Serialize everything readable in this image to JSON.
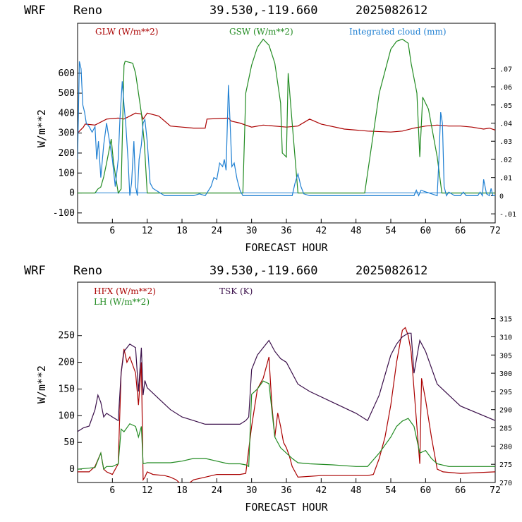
{
  "charts": [
    {
      "header": {
        "model": "WRF",
        "site": "Reno",
        "coords": "39.530,-119.660",
        "date": "2025082612"
      },
      "ylabel": "W/m**2",
      "xlabel": "FORECAST HOUR",
      "legend": {
        "s0": "GLW (W/m**2)",
        "s1": "GSW (W/m**2)",
        "s2": "Integrated cloud (mm)"
      }
    },
    {
      "header": {
        "model": "WRF",
        "site": "Reno",
        "coords": "39.530,-119.660",
        "date": "2025082612"
      },
      "ylabel": "W/m**2",
      "xlabel": "FORECAST HOUR",
      "legend": {
        "s0": "HFX (W/m**2)",
        "s1": "LH (W/m**2)",
        "s2": "TSK (K)"
      }
    }
  ],
  "chart_data": [
    {
      "type": "line",
      "title": "",
      "xlabel": "FORECAST HOUR",
      "ylabel": "W/m**2",
      "xlim": [
        0,
        72
      ],
      "ylim": [
        -150,
        850
      ],
      "x_ticks": [
        6,
        12,
        18,
        24,
        30,
        36,
        42,
        48,
        54,
        60,
        66,
        72
      ],
      "y_ticks": [
        -100,
        0,
        100,
        200,
        300,
        400,
        500,
        600
      ],
      "y2lim": [
        -0.015,
        0.095
      ],
      "y2_ticks": [
        -0.01,
        0,
        0.01,
        0.02,
        0.03,
        0.04,
        0.05,
        0.06,
        0.07
      ],
      "y2_tick_labels": [
        "-.01",
        "0",
        ".01",
        ".02",
        ".03",
        ".04",
        ".05",
        ".06",
        ".07"
      ],
      "grid": false,
      "legend_position": "top",
      "colors": [
        "#aa0000",
        "#228b22",
        "#1e7fd2"
      ],
      "series": [
        {
          "name": "GLW (W/m**2)",
          "axis": "left",
          "x": [
            0,
            1,
            1.3,
            3,
            5,
            7,
            8,
            10,
            11,
            11.3,
            12,
            14,
            16,
            18,
            20,
            22,
            22.3,
            26,
            26.5,
            28,
            30,
            32,
            36,
            38,
            40,
            42,
            46,
            50,
            54,
            56,
            58,
            60,
            62,
            64,
            66,
            68,
            70,
            71,
            72
          ],
          "y": [
            300,
            330,
            345,
            340,
            370,
            375,
            370,
            400,
            395,
            370,
            400,
            385,
            335,
            330,
            325,
            325,
            370,
            375,
            360,
            350,
            330,
            340,
            330,
            335,
            370,
            345,
            320,
            310,
            305,
            310,
            325,
            335,
            340,
            335,
            335,
            330,
            320,
            325,
            315
          ]
        },
        {
          "name": "GSW (W/m**2)",
          "axis": "left",
          "x": [
            0,
            3,
            3.5,
            4,
            4.5,
            5,
            5.8,
            6.2,
            7,
            7.5,
            8,
            8.2,
            9.5,
            10,
            10.5,
            11,
            11.5,
            12,
            28.5,
            29,
            30,
            31,
            32,
            33,
            34,
            35,
            35.3,
            36,
            36.3,
            37,
            38,
            49.5,
            52,
            54,
            55,
            56,
            57,
            57.5,
            58.5,
            59,
            59.5,
            60.5,
            62,
            62.8,
            72
          ],
          "y": [
            0,
            0,
            20,
            30,
            80,
            150,
            270,
            150,
            0,
            20,
            640,
            660,
            650,
            600,
            500,
            400,
            250,
            0,
            0,
            500,
            640,
            730,
            770,
            740,
            650,
            450,
            200,
            180,
            600,
            350,
            0,
            0,
            500,
            720,
            760,
            770,
            750,
            650,
            500,
            180,
            480,
            420,
            180,
            0,
            0
          ]
        },
        {
          "name": "Integrated cloud (mm)",
          "axis": "right",
          "x": [
            0,
            0.3,
            0.6,
            0.9,
            1.2,
            1.5,
            2,
            2.5,
            3,
            3.3,
            3.6,
            4,
            4.5,
            5,
            5.5,
            6,
            6.5,
            7,
            7.3,
            7.7,
            8,
            8.3,
            8.7,
            9,
            9.3,
            9.7,
            10,
            10.3,
            10.6,
            11,
            11.3,
            11.6,
            12,
            12.5,
            13,
            13.5,
            14,
            15,
            20,
            21,
            22,
            23,
            23.5,
            24,
            24.5,
            25,
            25.3,
            25.6,
            26,
            26.3,
            26.6,
            27,
            27.5,
            28,
            28.5,
            29,
            33,
            37,
            37.5,
            38,
            38.5,
            39,
            40,
            58,
            58.4,
            58.8,
            59.2,
            62,
            62.3,
            62.6,
            62.9,
            63.2,
            63.6,
            64,
            65,
            66,
            66.5,
            67,
            69,
            69.4,
            69.8,
            70,
            70.5,
            71,
            71.3,
            71.6,
            72
          ],
          "y": [
            0.02,
            0.074,
            0.07,
            0.05,
            0.046,
            0.04,
            0.038,
            0.035,
            0.038,
            0.02,
            0.03,
            0.01,
            0.028,
            0.04,
            0.03,
            0.02,
            0.005,
            0.02,
            0.042,
            0.063,
            0.05,
            0.04,
            0.02,
            0.0,
            0.007,
            0.03,
            0.005,
            0.0,
            0.02,
            0.028,
            0.04,
            0.042,
            0.03,
            0.007,
            0.004,
            0.003,
            0.002,
            0.0,
            0.0,
            0.001,
            0.0,
            0.005,
            0.01,
            0.009,
            0.018,
            0.016,
            0.02,
            0.014,
            0.061,
            0.04,
            0.016,
            0.018,
            0.009,
            0.003,
            0.0,
            0.0,
            0.0,
            0.0,
            0.007,
            0.012,
            0.005,
            0.001,
            0.0,
            0.0,
            0.003,
            0.0,
            0.003,
            0.0,
            0.02,
            0.046,
            0.04,
            0.005,
            0.0,
            0.002,
            0.0,
            0.0,
            0.002,
            0.0,
            0.0,
            0.002,
            0.0,
            0.009,
            0.001,
            0.0,
            0.004,
            0.0,
            0.0
          ]
        }
      ]
    },
    {
      "type": "line",
      "title": "",
      "xlabel": "FORECAST HOUR",
      "ylabel": "W/m**2",
      "xlim": [
        0,
        72
      ],
      "ylim": [
        -25,
        350
      ],
      "x_ticks": [
        6,
        12,
        18,
        24,
        30,
        36,
        42,
        48,
        54,
        60,
        66,
        72
      ],
      "y_ticks": [
        0,
        50,
        100,
        150,
        200,
        250
      ],
      "y2lim": [
        270,
        325
      ],
      "y2_ticks": [
        270,
        275,
        280,
        285,
        290,
        295,
        300,
        305,
        310,
        315
      ],
      "y2_tick_labels": [
        "270",
        "275",
        "280",
        "285",
        "290",
        "295",
        "300",
        "305",
        "310",
        "315"
      ],
      "grid": false,
      "legend_position": "top-left",
      "colors": [
        "#aa0000",
        "#228b22",
        "#3a0f4a"
      ],
      "series": [
        {
          "name": "HFX (W/m**2)",
          "axis": "left",
          "x": [
            0,
            2,
            3,
            4,
            4.5,
            5,
            6,
            7,
            7.5,
            8,
            8.5,
            9,
            10,
            10.5,
            11,
            11.3,
            11.6,
            12,
            13,
            15,
            16,
            17,
            18,
            19,
            20,
            22,
            24,
            26,
            28,
            29,
            30,
            31,
            32,
            32.5,
            33,
            33.5,
            34,
            34.5,
            35,
            35.5,
            36,
            36.5,
            37,
            38,
            42,
            48,
            50,
            51,
            52,
            53,
            54,
            55,
            56,
            56.5,
            57,
            57.5,
            58,
            58.5,
            59,
            59.3,
            60,
            61,
            62,
            63,
            66,
            72
          ],
          "y": [
            -5,
            -5,
            5,
            30,
            0,
            -5,
            -10,
            10,
            180,
            225,
            200,
            210,
            180,
            120,
            200,
            -20,
            -15,
            -5,
            -10,
            -12,
            -15,
            -20,
            -30,
            -28,
            -20,
            -15,
            -10,
            -10,
            -10,
            -8,
            80,
            150,
            170,
            190,
            210,
            120,
            60,
            105,
            80,
            50,
            40,
            25,
            5,
            -15,
            -12,
            -12,
            -12,
            -10,
            20,
            60,
            120,
            200,
            260,
            265,
            250,
            220,
            150,
            80,
            10,
            170,
            130,
            60,
            0,
            -5,
            -8,
            -5
          ]
        },
        {
          "name": "LH (W/m**2)",
          "axis": "left",
          "x": [
            0,
            3,
            4,
            4.5,
            5,
            6,
            7,
            7.5,
            8,
            9,
            10,
            10.5,
            11,
            11.3,
            12,
            14,
            16,
            18,
            20,
            22,
            24,
            26,
            28,
            29,
            29.5,
            30,
            31,
            32,
            33,
            34,
            35,
            36,
            37,
            38,
            40,
            44,
            48,
            50,
            52,
            54,
            55,
            56,
            57,
            58,
            59,
            60,
            61,
            62,
            64,
            72
          ],
          "y": [
            0,
            3,
            30,
            0,
            5,
            5,
            10,
            75,
            70,
            85,
            80,
            60,
            80,
            10,
            12,
            12,
            12,
            15,
            20,
            20,
            15,
            10,
            10,
            8,
            5,
            140,
            150,
            165,
            160,
            60,
            40,
            30,
            20,
            12,
            10,
            8,
            5,
            5,
            30,
            60,
            80,
            90,
            95,
            80,
            30,
            35,
            20,
            10,
            5,
            5
          ]
        },
        {
          "name": "TSK (K)",
          "axis": "right",
          "x": [
            0,
            1,
            2,
            3,
            3.5,
            4,
            4.5,
            5,
            6,
            7,
            7.5,
            8,
            9,
            10,
            10.5,
            11,
            11.3,
            11.6,
            12,
            14,
            16,
            18,
            20,
            22,
            24,
            26,
            28,
            29,
            29.5,
            30,
            31,
            32,
            33,
            34,
            35,
            36,
            38,
            40,
            44,
            48,
            50,
            52,
            54,
            55,
            56,
            57,
            57.5,
            58,
            59,
            60,
            62,
            66,
            72
          ],
          "y": [
            284,
            285,
            285.5,
            290,
            294,
            292,
            288,
            289,
            288,
            287,
            300,
            306,
            308,
            307,
            295,
            307,
            294,
            298,
            296,
            293,
            290,
            288,
            287,
            286,
            286,
            286,
            286,
            287,
            288,
            301,
            305,
            307,
            309,
            306,
            304,
            303,
            297,
            295,
            292,
            289,
            287,
            294,
            305,
            308,
            310,
            311,
            311,
            300,
            309,
            306,
            297,
            291,
            287
          ]
        }
      ]
    }
  ]
}
